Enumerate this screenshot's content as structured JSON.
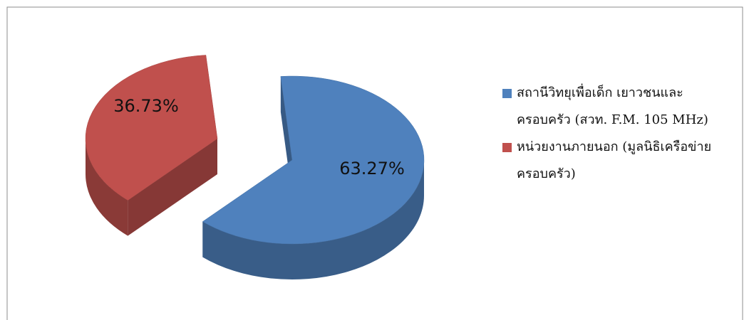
{
  "chart_data": {
    "type": "pie3d",
    "categories": [
      "สถานีวิทยุเพื่อเด็ก เยาวชนและครอบครัว (สวท. F.M. 105 MHz)",
      "หน่วยงานภายนอก (มูลนิธิเครือข่ายครอบครัว)"
    ],
    "values": [
      63.27,
      36.73
    ],
    "value_labels": [
      "63.27%",
      "36.73%"
    ],
    "colors": [
      "#4f81bd",
      "#c0504d"
    ],
    "legend": "right"
  }
}
